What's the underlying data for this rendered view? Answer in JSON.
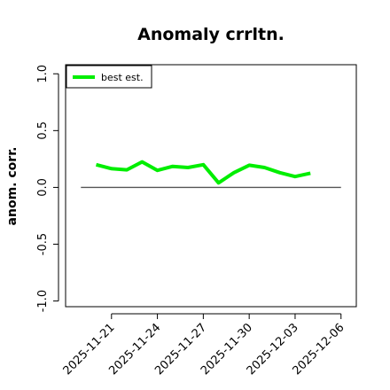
{
  "chart_data": {
    "type": "line",
    "title": "Anomaly crrltn.",
    "ylabel": "anom. corr.",
    "xlabel": "",
    "ylim": [
      -1.05,
      1.08
    ],
    "xlim": [
      "2025-11-18",
      "2025-12-07"
    ],
    "x_tick_labels": [
      "2025-11-21",
      "2025-11-24",
      "2025-11-27",
      "2025-11-30",
      "2025-12-03",
      "2025-12-06"
    ],
    "y_ticks": [
      -1.0,
      -0.5,
      0.0,
      0.5,
      1.0
    ],
    "y_tick_labels": [
      "-1.0",
      "-0.5",
      "0.0",
      "0.5",
      "1.0"
    ],
    "reference_line": {
      "y": 0.0,
      "x_from": "2025-11-19",
      "x_to": "2025-12-06",
      "color": "#555555"
    },
    "grid": false,
    "legend": {
      "position": "top-left",
      "entries": [
        "best est."
      ]
    },
    "series": [
      {
        "name": "best est.",
        "color": "#00ee00",
        "x": [
          "2025-11-20",
          "2025-11-21",
          "2025-11-22",
          "2025-11-23",
          "2025-11-24",
          "2025-11-25",
          "2025-11-26",
          "2025-11-27",
          "2025-11-28",
          "2025-11-29",
          "2025-11-30",
          "2025-12-01",
          "2025-12-02",
          "2025-12-03",
          "2025-12-04"
        ],
        "values": [
          0.2,
          0.165,
          0.155,
          0.225,
          0.15,
          0.185,
          0.175,
          0.2,
          0.04,
          0.13,
          0.195,
          0.175,
          0.13,
          0.095,
          0.125
        ]
      }
    ]
  }
}
